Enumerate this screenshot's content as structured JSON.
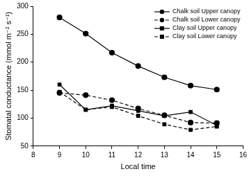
{
  "chart_data": {
    "type": "line",
    "x_label": "Local time",
    "y_label": "Stomatal conductance (mmol m⁻² s⁻¹)",
    "x": [
      9,
      10,
      11,
      12,
      13,
      14,
      15
    ],
    "series": [
      {
        "name": "Chalk soil Upper canopy",
        "color": "#000000",
        "marker": "circle",
        "line_style": "solid",
        "values": [
          280,
          251,
          217,
          193,
          173,
          158,
          151
        ]
      },
      {
        "name": "Chalk soil Lower canopy",
        "color": "#000000",
        "marker": "circle",
        "line_style": "dashed",
        "values": [
          145,
          141,
          132,
          117,
          105,
          92,
          91
        ]
      },
      {
        "name": "Clay soil Upper canopy",
        "color": "#000000",
        "marker": "square",
        "line_style": "solid",
        "values": [
          160,
          115,
          122,
          113,
          104,
          111,
          87
        ]
      },
      {
        "name": "Clay soil Lower canopy",
        "color": "#000000",
        "marker": "square",
        "line_style": "dashed",
        "values": [
          147,
          115,
          120,
          104,
          89,
          79,
          85
        ]
      }
    ],
    "xlim": [
      8,
      16
    ],
    "xticks": [
      8,
      9,
      10,
      11,
      12,
      13,
      14,
      15,
      16
    ],
    "ylim": [
      50,
      300
    ],
    "yticks": [
      50,
      100,
      150,
      200,
      250,
      300
    ],
    "grid": false,
    "legend": "upper right"
  }
}
